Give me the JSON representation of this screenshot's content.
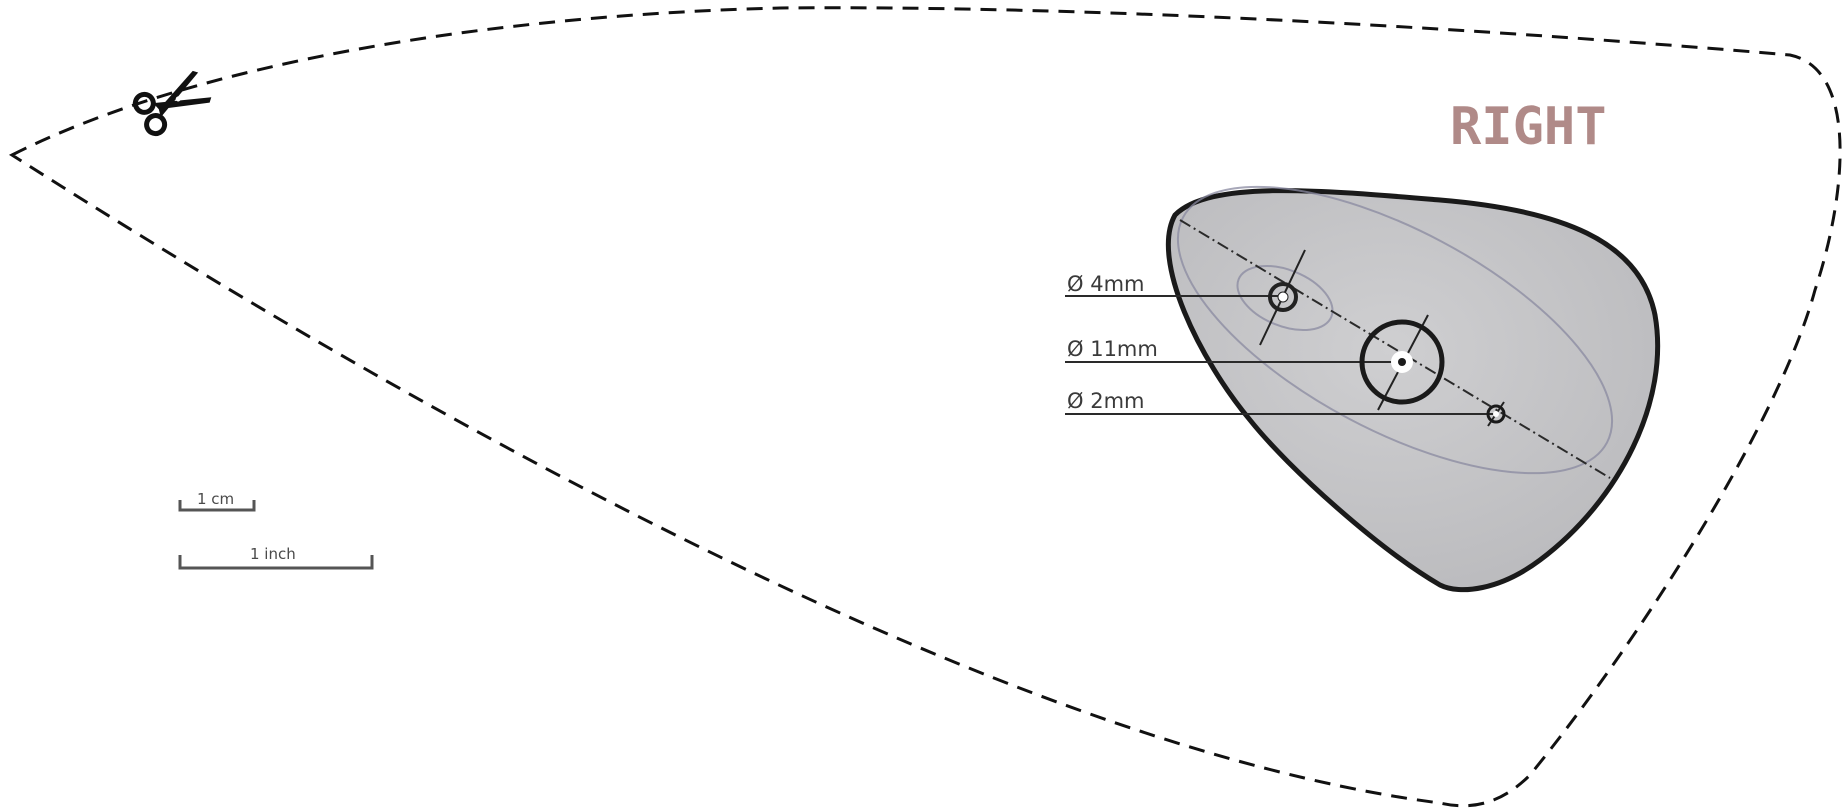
{
  "side_label": "RIGHT",
  "holes": [
    {
      "label": "Ø 4mm"
    },
    {
      "label": "Ø 11mm"
    },
    {
      "label": "Ø 2mm"
    }
  ],
  "scale": {
    "cm_label": "1 cm",
    "inch_label": "1 inch"
  },
  "icons": {
    "cut_marker": "scissors-icon"
  },
  "colors": {
    "side_label": "#b08a88",
    "pad_fill": "#c6c6c8",
    "outline": "#1a1a1a",
    "cut_line": "#111111"
  }
}
